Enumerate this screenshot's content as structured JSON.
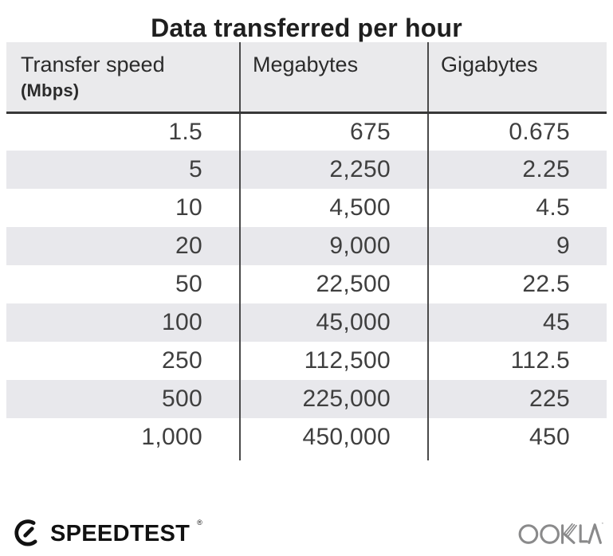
{
  "title": "Data transferred per hour",
  "table": {
    "columns": [
      {
        "label": "Transfer speed",
        "sublabel": "(Mbps)"
      },
      {
        "label": "Megabytes"
      },
      {
        "label": "Gigabytes"
      }
    ],
    "rows": [
      [
        "1.5",
        "675",
        "0.675"
      ],
      [
        "5",
        "2,250",
        "2.25"
      ],
      [
        "10",
        "4,500",
        "4.5"
      ],
      [
        "20",
        "9,000",
        "9"
      ],
      [
        "50",
        "22,500",
        "22.5"
      ],
      [
        "100",
        "45,000",
        "45"
      ],
      [
        "250",
        "112,500",
        "112.5"
      ],
      [
        "500",
        "225,000",
        "225"
      ],
      [
        "1,000",
        "450,000",
        "450"
      ]
    ]
  },
  "chart_data": {
    "type": "table",
    "title": "Data transferred per hour",
    "columns": [
      "Transfer speed (Mbps)",
      "Megabytes",
      "Gigabytes"
    ],
    "rows": [
      [
        1.5,
        675,
        0.675
      ],
      [
        5,
        2250,
        2.25
      ],
      [
        10,
        4500,
        4.5
      ],
      [
        20,
        9000,
        9
      ],
      [
        50,
        22500,
        22.5
      ],
      [
        100,
        45000,
        45
      ],
      [
        250,
        112500,
        112.5
      ],
      [
        500,
        225000,
        225
      ],
      [
        1000,
        450000,
        450
      ]
    ]
  },
  "footer": {
    "brand_left": "SPEEDTEST",
    "brand_left_mark": "®",
    "brand_right": "OOKLA",
    "brand_right_mark": "™"
  },
  "colors": {
    "header_bg": "#eaeaec",
    "row_alt": "#e8e8ec",
    "divider": "#4a4a4a",
    "header_rule": "#383838",
    "title_color": "#1f1f1f",
    "number_color": "#3f3f3f",
    "brand_dark": "#111111",
    "ookla_gray": "#8a8a8b"
  }
}
